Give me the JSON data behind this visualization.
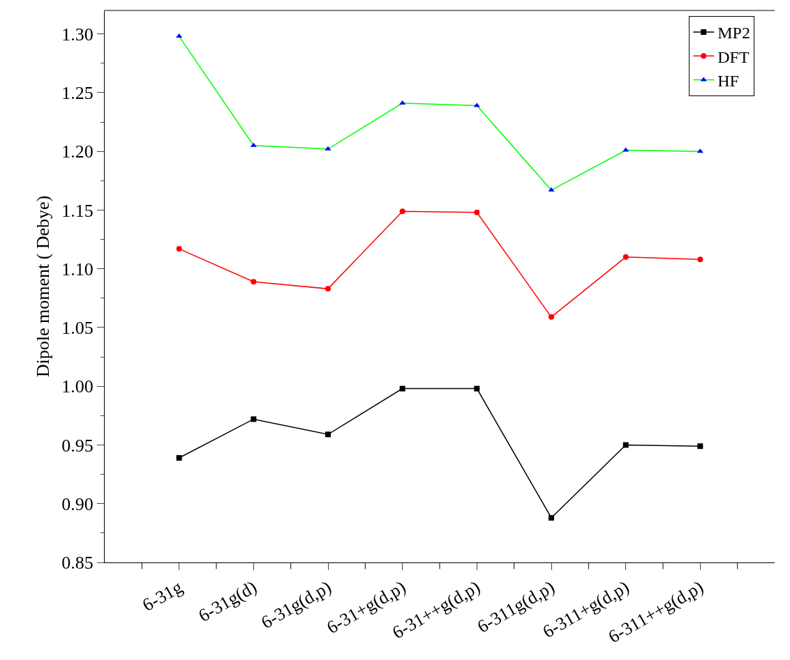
{
  "chart_data": {
    "type": "line",
    "ylabel": "Dipole moment ( Debye)",
    "categories": [
      "6-31g",
      "6-31g(d)",
      "6-31g(d,p)",
      "6-31+g(d,p)",
      "6-31++g(d,p)",
      "6-311g(d,p)",
      "6-311+g(d,p)",
      "6-311++g(d,p)"
    ],
    "series": [
      {
        "name": "MP2",
        "color": "#000000",
        "marker": "square",
        "values": [
          0.939,
          0.972,
          0.959,
          0.998,
          0.998,
          0.888,
          0.95,
          0.949
        ]
      },
      {
        "name": "DFT",
        "color": "#ff0000",
        "marker": "circle",
        "values": [
          1.117,
          1.089,
          1.083,
          1.149,
          1.148,
          1.059,
          1.11,
          1.108
        ]
      },
      {
        "name": "HF",
        "color": "#00ff00",
        "colors": [
          "#0000ff",
          "#0000ff",
          "#0000ff",
          "#0000ff",
          "#0000ff",
          "#0000ff",
          "#0000ff",
          "#0000ff"
        ],
        "marker": "triangle",
        "values": [
          1.298,
          1.205,
          1.202,
          1.241,
          1.239,
          1.167,
          1.201,
          1.2
        ]
      }
    ],
    "ylim": [
      0.85,
      1.32
    ],
    "yticks": [
      0.85,
      {
        "value": 0.9,
        "label": "0.90"
      },
      0.95,
      {
        "value": 1.0,
        "label": "1.00"
      },
      1.05,
      {
        "value": 1.1,
        "label": "1.10"
      },
      1.15,
      {
        "value": 1.2,
        "label": "1.20"
      },
      1.25,
      {
        "value": 1.3,
        "label": "1.30"
      }
    ],
    "grid": false,
    "legend": "top right",
    "line_style": "solid"
  }
}
